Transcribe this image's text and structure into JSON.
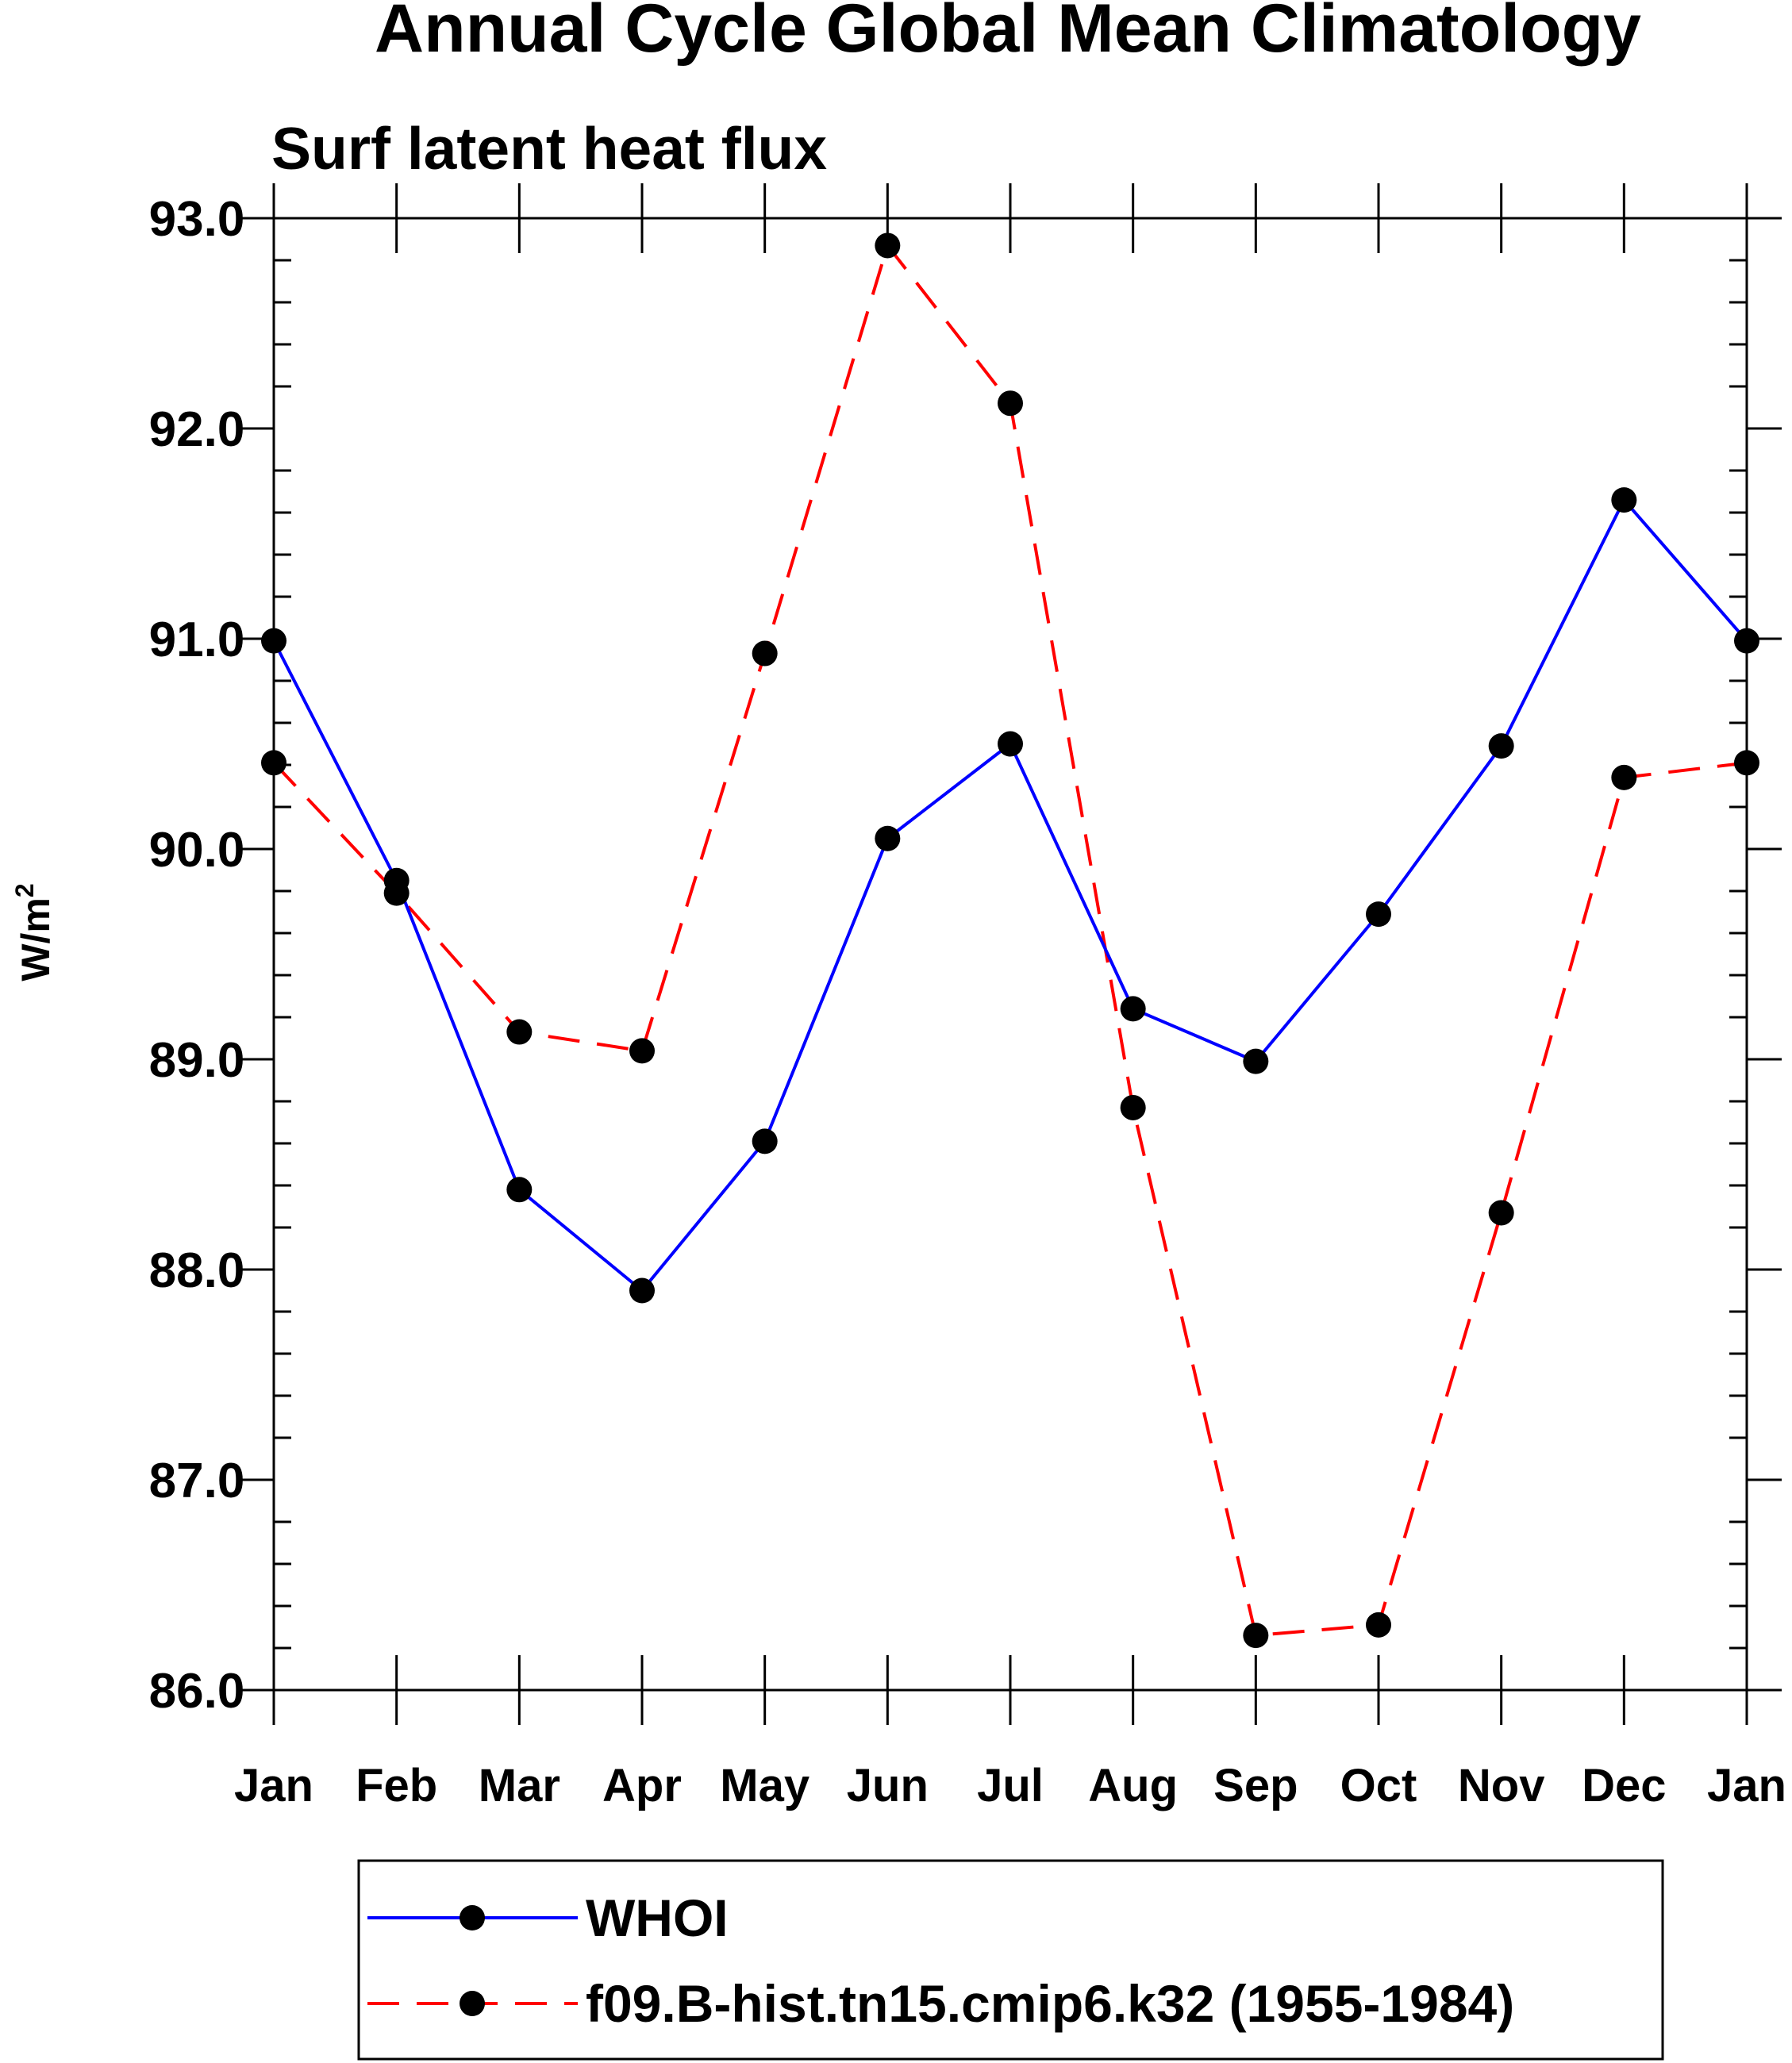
{
  "chart_data": {
    "type": "line",
    "title": "Annual Cycle Global Mean Climatology",
    "subtitle": "Surf latent heat flux",
    "ylabel": "W/m",
    "ylabel_sup": "2",
    "xlabel": "",
    "categories": [
      "Jan",
      "Feb",
      "Mar",
      "Apr",
      "May",
      "Jun",
      "Jul",
      "Aug",
      "Sep",
      "Oct",
      "Nov",
      "Dec",
      "Jan"
    ],
    "ylim": [
      86.0,
      93.0
    ],
    "yticks": [
      "86.0",
      "87.0",
      "88.0",
      "89.0",
      "90.0",
      "91.0",
      "92.0",
      "93.0"
    ],
    "legend_position": "bottom",
    "series": [
      {
        "name": "WHOI",
        "color": "#0000ff",
        "dash": "solid",
        "values": [
          90.99,
          89.85,
          88.38,
          87.9,
          88.61,
          90.05,
          90.5,
          89.24,
          88.99,
          89.69,
          90.49,
          91.66,
          90.99
        ]
      },
      {
        "name": "f09.B-hist.tn15.cmip6.k32 (1955-1984)",
        "color": "#ff0000",
        "dash": "dashed",
        "values": [
          90.41,
          89.79,
          89.13,
          89.04,
          90.93,
          92.87,
          92.12,
          88.77,
          86.26,
          86.31,
          88.27,
          90.34,
          90.41
        ]
      }
    ]
  }
}
